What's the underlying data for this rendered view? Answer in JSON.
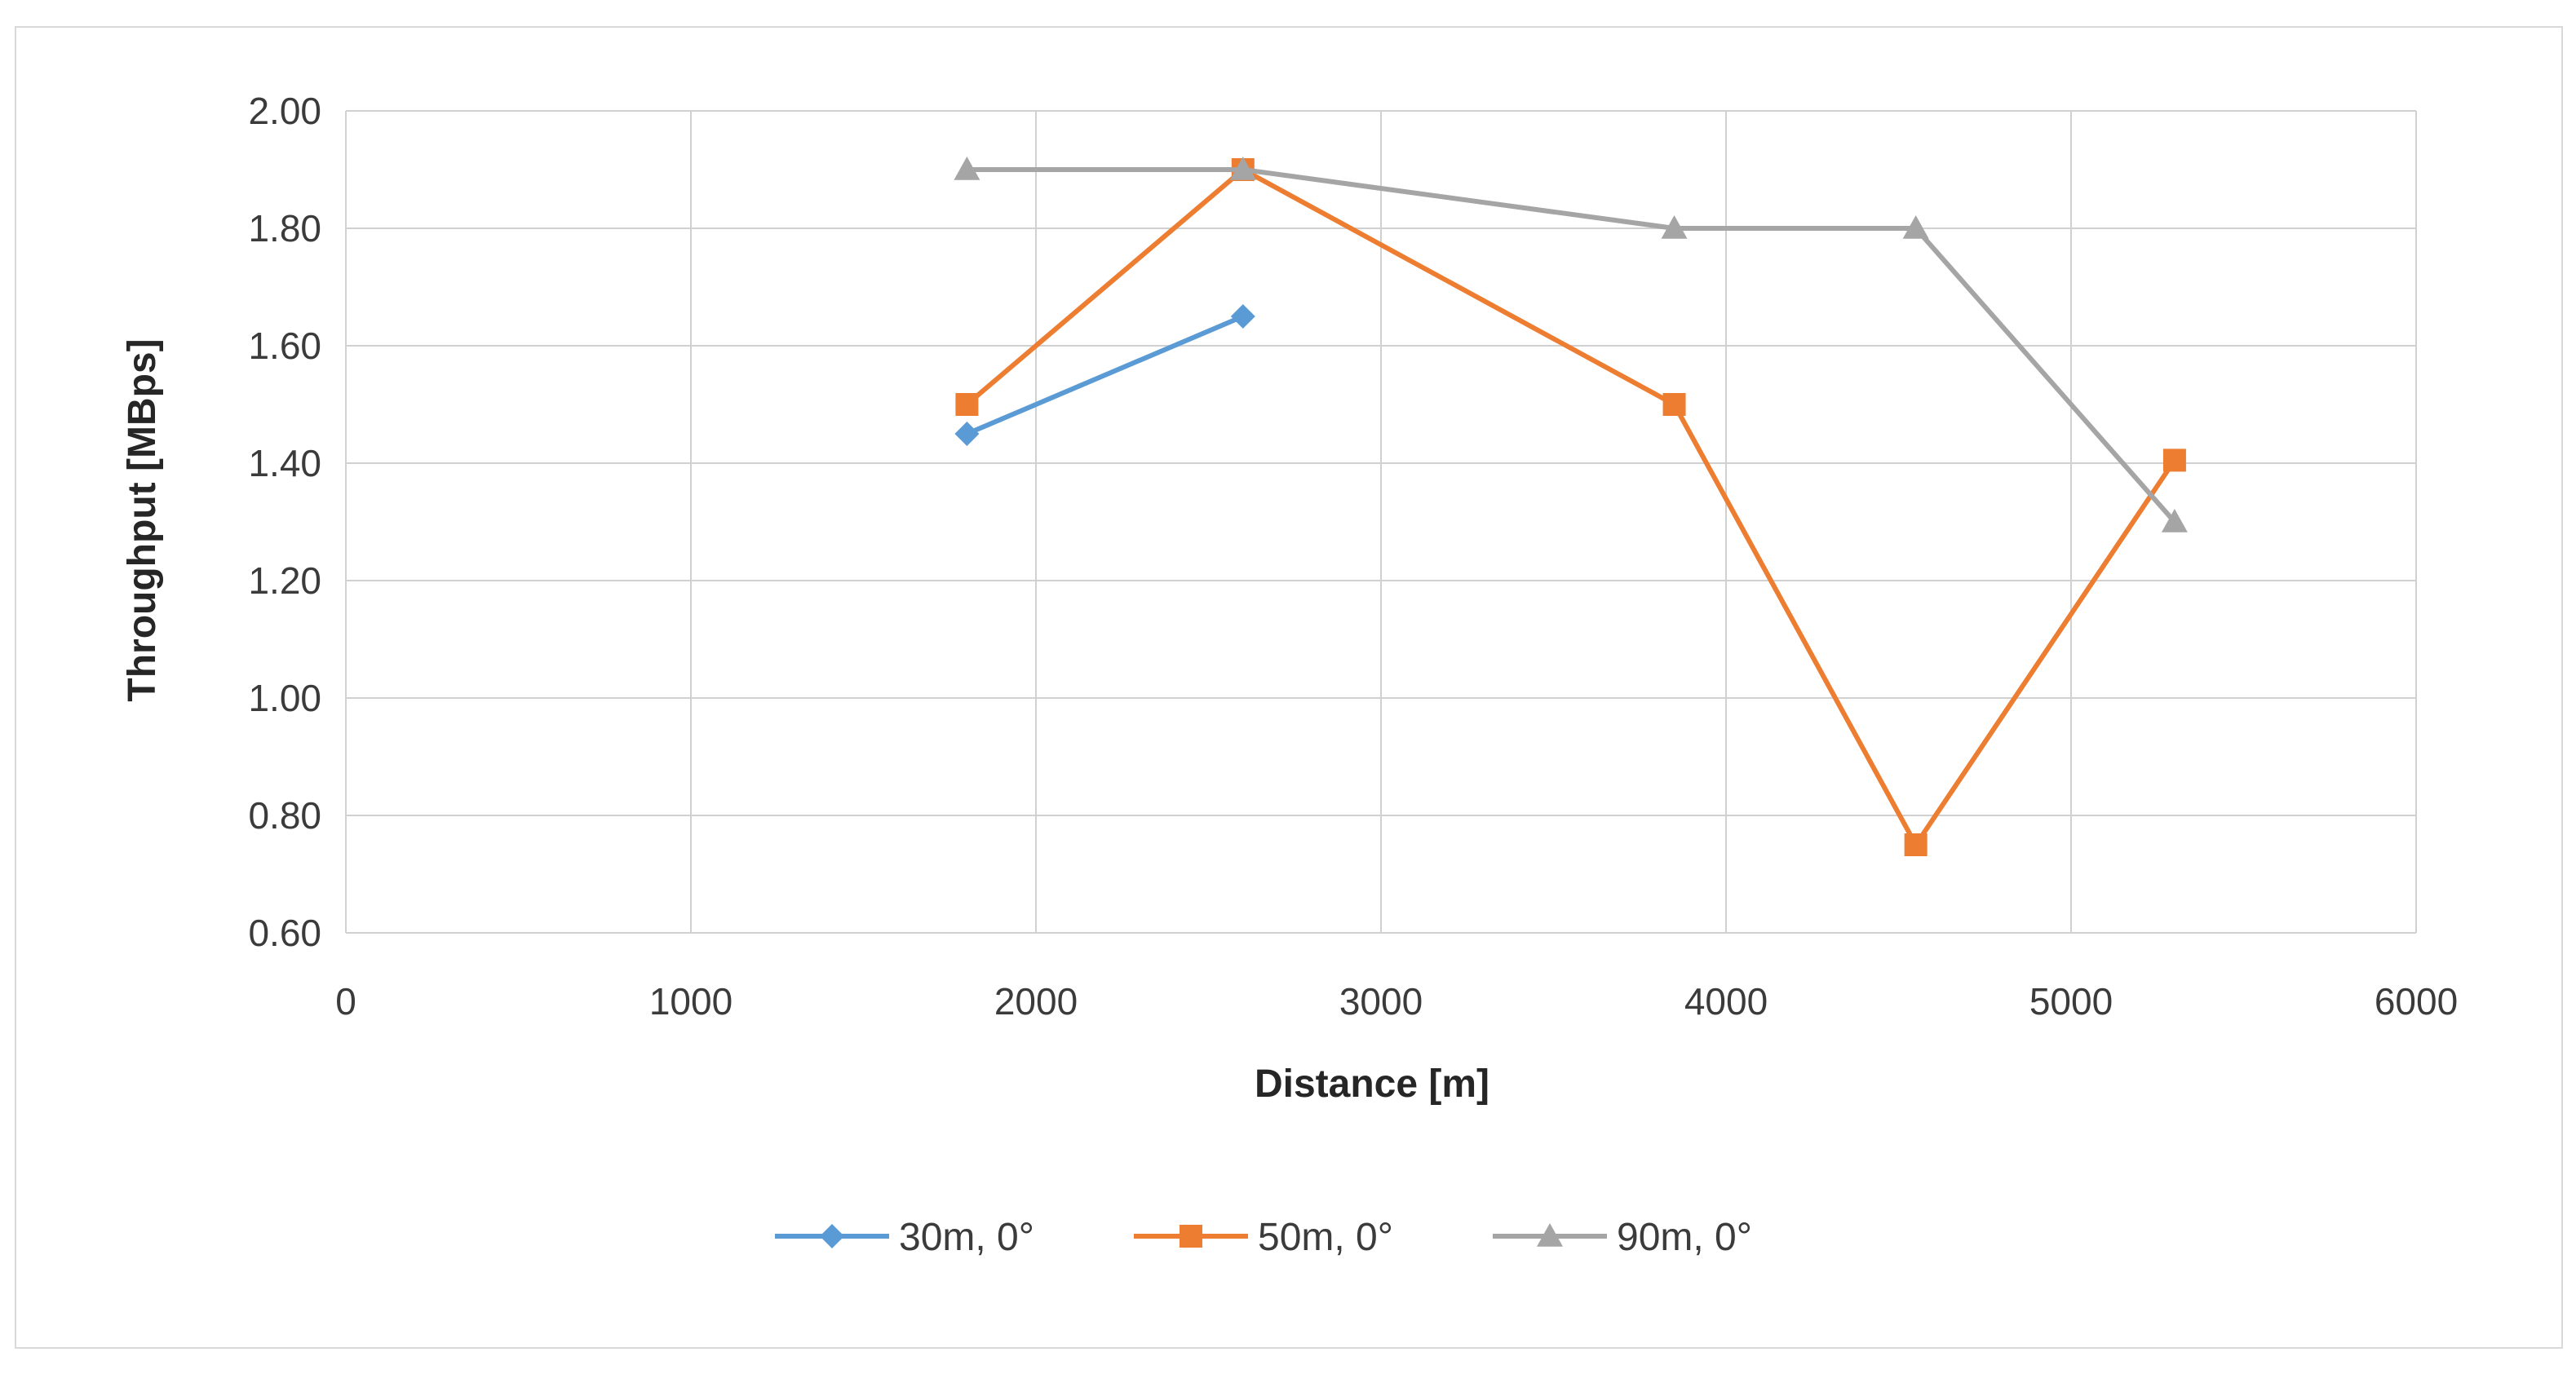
{
  "chart_data": {
    "type": "scatter",
    "title": "",
    "xlabel": "Distance [m]",
    "ylabel": "Throughput [MBps]",
    "xlim": [
      0,
      6000
    ],
    "ylim": [
      0.6,
      2.0
    ],
    "xticks": [
      0,
      1000,
      2000,
      3000,
      4000,
      5000,
      6000
    ],
    "yticks": [
      0.6,
      0.8,
      1.0,
      1.2,
      1.4,
      1.6,
      1.8,
      2.0
    ],
    "xtick_labels": [
      "0",
      "1000",
      "2000",
      "3000",
      "4000",
      "5000",
      "6000"
    ],
    "ytick_labels": [
      "0.60",
      "0.80",
      "1.00",
      "1.20",
      "1.40",
      "1.60",
      "1.80",
      "2.00"
    ],
    "grid": true,
    "legend_position": "bottom",
    "series": [
      {
        "name": "30m, 0°",
        "color": "#5b9bd5",
        "marker": "diamond",
        "x": [
          1800,
          2600
        ],
        "y": [
          1.45,
          1.65
        ]
      },
      {
        "name": "50m, 0°",
        "color": "#ed7d31",
        "marker": "square",
        "x": [
          1800,
          2600,
          3850,
          4550,
          5300
        ],
        "y": [
          1.5,
          1.9,
          1.5,
          0.75,
          1.405
        ]
      },
      {
        "name": "90m, 0°",
        "color": "#a5a5a5",
        "marker": "triangle",
        "x": [
          1800,
          2600,
          3850,
          4550,
          5300
        ],
        "y": [
          1.9,
          1.9,
          1.8,
          1.8,
          1.3
        ]
      }
    ]
  }
}
